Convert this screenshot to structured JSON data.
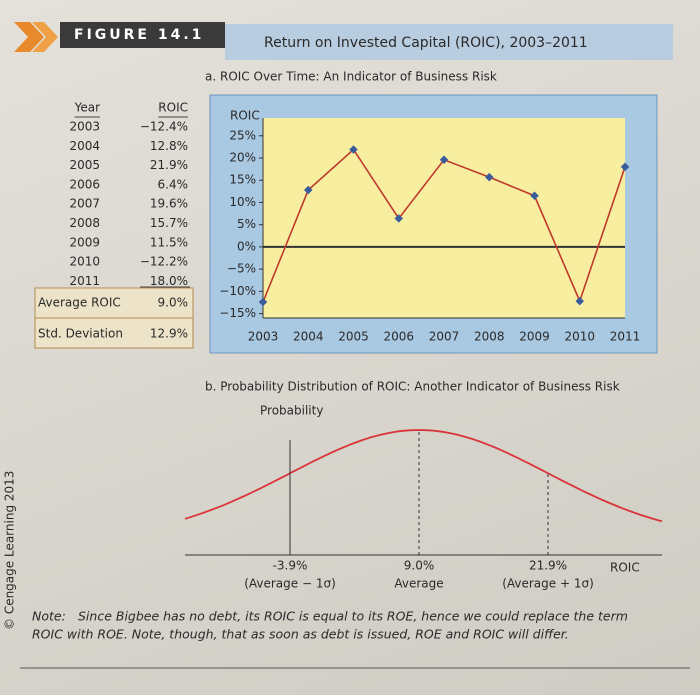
{
  "figure": {
    "label": "FIGURE 14.1",
    "title": "Return on Invested Capital (ROIC), 2003–2011"
  },
  "table": {
    "header": [
      "Year",
      "ROIC"
    ],
    "rows": [
      [
        "2003",
        "−12.4%"
      ],
      [
        "2004",
        "12.8%"
      ],
      [
        "2005",
        "21.9%"
      ],
      [
        "2006",
        "6.4%"
      ],
      [
        "2007",
        "19.6%"
      ],
      [
        "2008",
        "15.7%"
      ],
      [
        "2009",
        "11.5%"
      ],
      [
        "2010",
        "−12.2%"
      ],
      [
        "2011",
        "18.0%"
      ]
    ],
    "summary": [
      [
        "Average ROIC",
        "9.0%"
      ],
      [
        "Std. Deviation",
        "12.9%"
      ]
    ]
  },
  "chart_data": [
    {
      "type": "line",
      "title": "a. ROIC Over Time: An Indicator of Business Risk",
      "y_label": "ROIC",
      "categories": [
        "2003",
        "2004",
        "2005",
        "2006",
        "2007",
        "2008",
        "2009",
        "2010",
        "2011"
      ],
      "values": [
        -12.4,
        12.8,
        21.9,
        6.4,
        19.6,
        15.7,
        11.5,
        -12.2,
        18.0
      ],
      "color": "#c0392b",
      "marker_color": "#3a5c9a",
      "ylim": [
        -16,
        29
      ],
      "yticks": [
        {
          "value": 25,
          "label": "25%"
        },
        {
          "value": 20,
          "label": "20%"
        },
        {
          "value": 15,
          "label": "15%"
        },
        {
          "value": 10,
          "label": "10%"
        },
        {
          "value": 5,
          "label": "5%"
        },
        {
          "value": 0,
          "label": "0%"
        },
        {
          "value": -5,
          "label": "−5%"
        },
        {
          "value": -10,
          "label": "−10%"
        },
        {
          "value": -15,
          "label": "−15%"
        }
      ]
    },
    {
      "type": "normal",
      "title": "b. Probability Distribution of ROIC: Another Indicator of Business Risk",
      "y_label": "Probability",
      "x_label": "ROIC",
      "mean": 9.0,
      "sd": 12.9,
      "color": "#d9343a",
      "xlim": [
        -14.4,
        33.3
      ],
      "xticks": [
        {
          "value": -3.9,
          "label": "-3.9%"
        },
        {
          "value": 9.0,
          "label": "9.0%"
        },
        {
          "value": 21.9,
          "label": "21.9%"
        }
      ],
      "xtick_notes": [
        "(Average − 1σ)",
        "Average",
        "(Average + 1σ)"
      ]
    }
  ],
  "note": {
    "label": "Note:",
    "text": [
      "Since Bigbee has no debt, its ROIC is equal to its ROE, hence we could replace the term",
      "ROIC with ROE. Note, though, that as soon as debt is issued, ROE and ROIC will differ."
    ]
  },
  "credit": "© Cengage Learning 2013"
}
